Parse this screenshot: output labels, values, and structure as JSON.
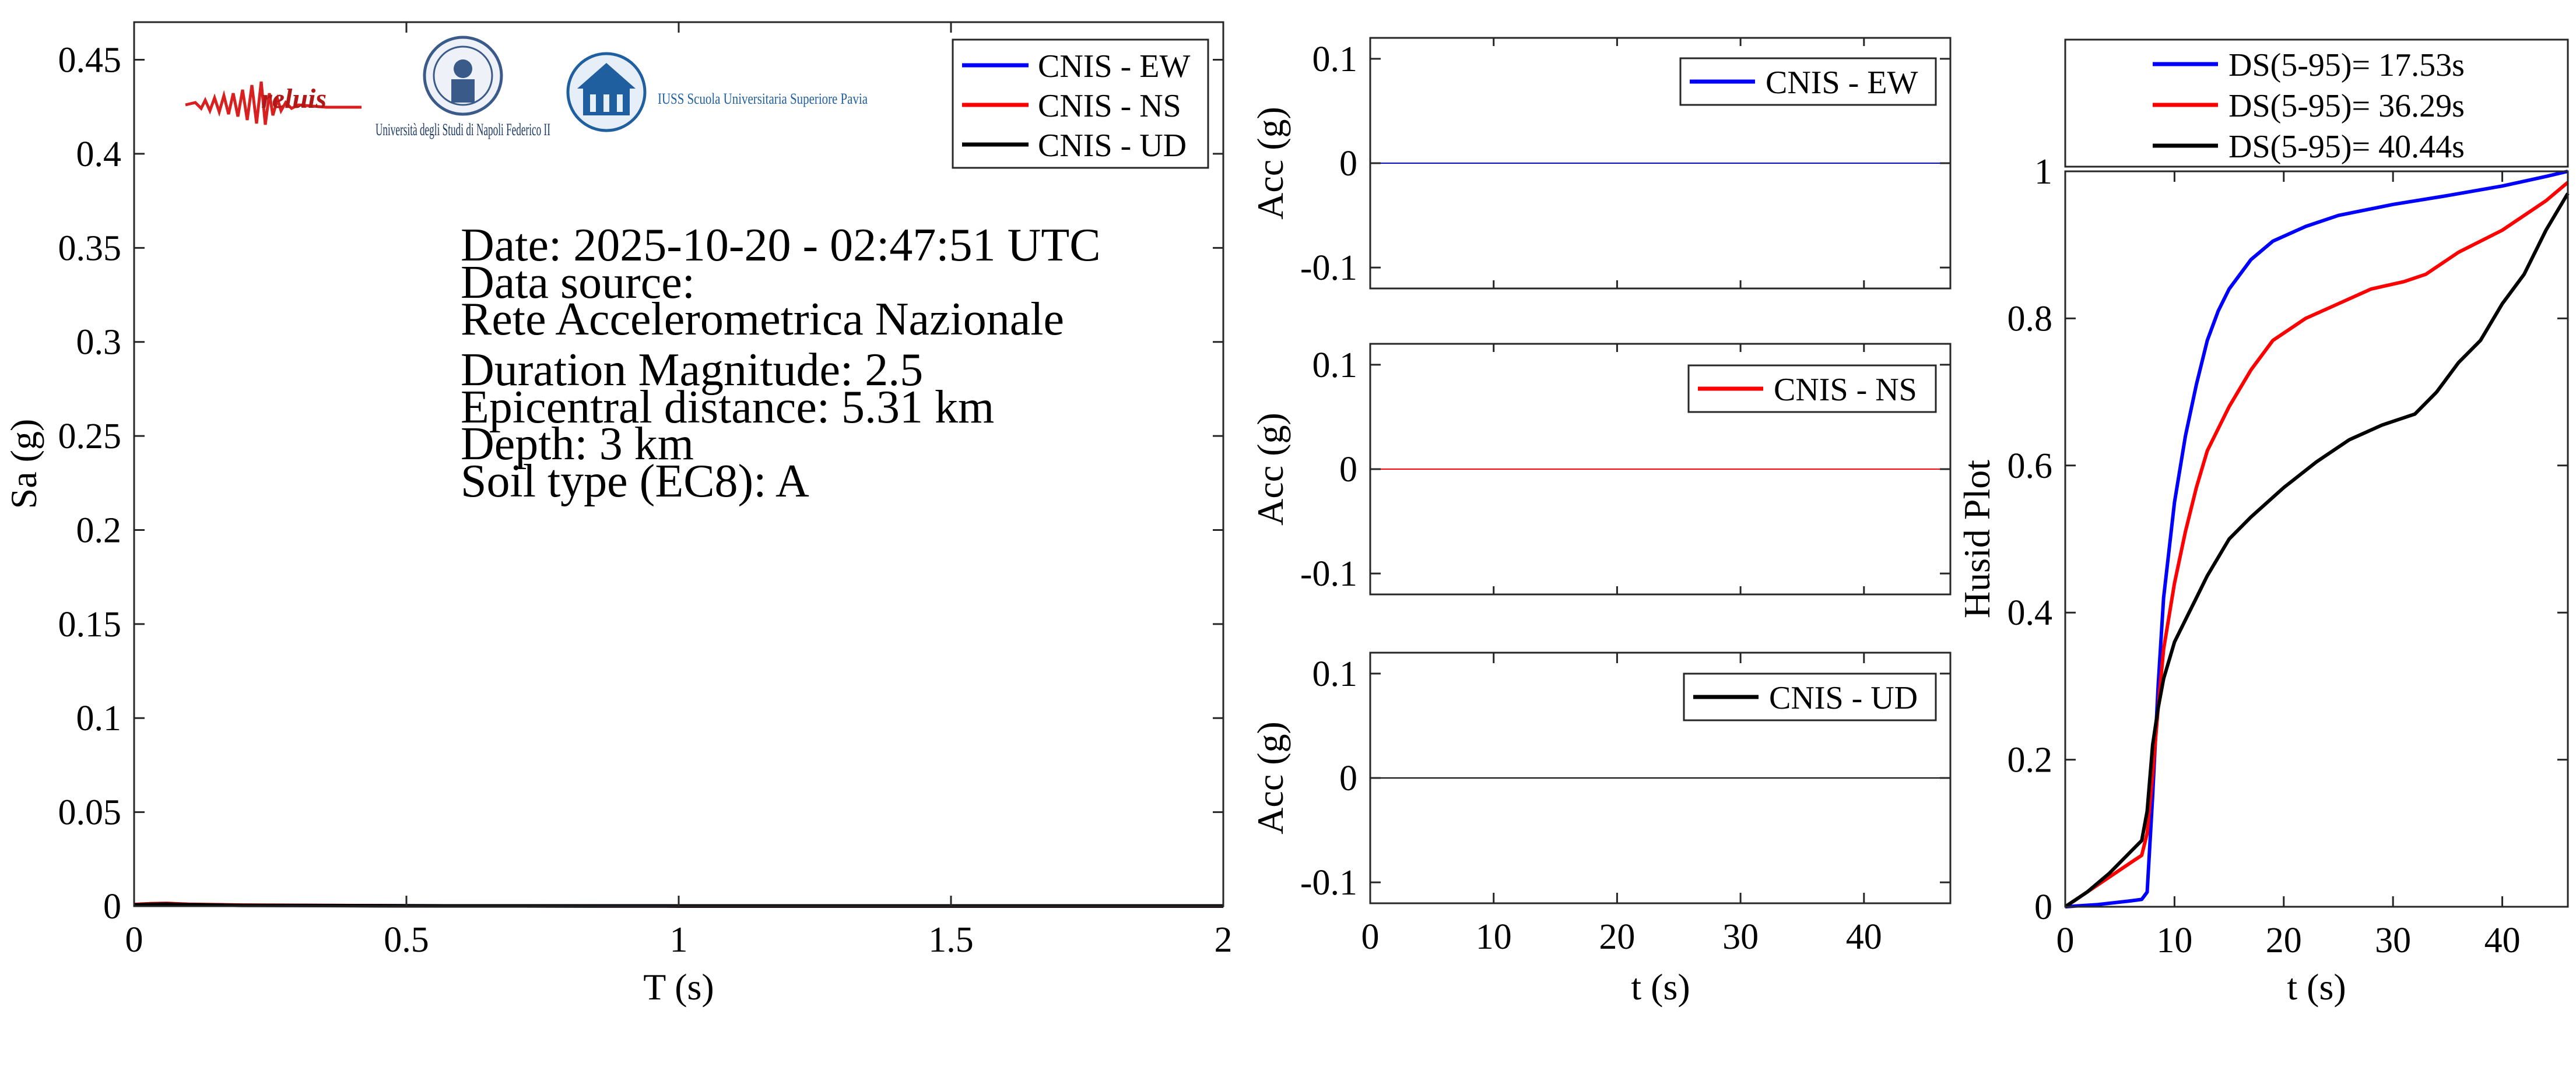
{
  "chart_data": [
    {
      "type": "line",
      "xlabel": "T (s)",
      "ylabel": "Sa (g)",
      "xlim": [
        0,
        2
      ],
      "ylim": [
        0,
        0.47
      ],
      "xticks": [
        "0",
        "0.5",
        "1",
        "1.5",
        "2"
      ],
      "yticks": [
        "0",
        "0.05",
        "0.1",
        "0.15",
        "0.2",
        "0.25",
        "0.3",
        "0.35",
        "0.4",
        "0.45"
      ],
      "legend_position": "top-right",
      "series": [
        {
          "name": "CNIS - EW",
          "color": "#0000ff",
          "x": [
            0,
            0.03,
            0.06,
            0.1,
            0.2,
            0.5,
            1,
            1.5,
            2
          ],
          "values": [
            0.0008,
            0.0011,
            0.0013,
            0.0009,
            0.0005,
            0.0002,
            0.0001,
            0.0001,
            0.0001
          ]
        },
        {
          "name": "CNIS - NS",
          "color": "#ff0000",
          "x": [
            0,
            0.03,
            0.06,
            0.1,
            0.2,
            0.5,
            1,
            1.5,
            2
          ],
          "values": [
            0.0009,
            0.0013,
            0.0015,
            0.001,
            0.0006,
            0.0002,
            0.0001,
            0.0001,
            0.0001
          ]
        },
        {
          "name": "CNIS - UD",
          "color": "#000000",
          "x": [
            0,
            0.03,
            0.06,
            0.1,
            0.2,
            0.5,
            1,
            1.5,
            2
          ],
          "values": [
            0.0007,
            0.001,
            0.0011,
            0.0008,
            0.0004,
            0.0002,
            0.0001,
            0.0001,
            0.0001
          ]
        }
      ],
      "annotations": [
        "Date: 2025-10-20 - 02:47:51 UTC",
        "Data source:",
        "Rete Accelerometrica Nazionale",
        "Duration Magnitude: 2.5",
        "Epicentral distance: 5.31 km",
        "Depth: 3 km",
        "Soil type (EC8): A"
      ],
      "logos": [
        "reluis",
        "Università degli Studi di Napoli Federico II",
        "IUSS Scuola Universitaria Superiore Pavia"
      ]
    },
    {
      "type": "line",
      "xlabel": "",
      "ylabel": "Acc (g)",
      "xlim": [
        0,
        47
      ],
      "ylim": [
        -0.12,
        0.12
      ],
      "yticks": [
        "-0.1",
        "0",
        "0.1"
      ],
      "legend_position": "top-right",
      "series": [
        {
          "name": "CNIS - EW",
          "color": "#0000ff",
          "x": [
            0,
            47
          ],
          "values": [
            0,
            0
          ]
        }
      ]
    },
    {
      "type": "line",
      "xlabel": "",
      "ylabel": "Acc (g)",
      "xlim": [
        0,
        47
      ],
      "ylim": [
        -0.12,
        0.12
      ],
      "yticks": [
        "-0.1",
        "0",
        "0.1"
      ],
      "legend_position": "top-right",
      "series": [
        {
          "name": "CNIS - NS",
          "color": "#ff0000",
          "x": [
            0,
            47
          ],
          "values": [
            0,
            0
          ]
        }
      ]
    },
    {
      "type": "line",
      "xlabel": "t (s)",
      "ylabel": "Acc (g)",
      "xlim": [
        0,
        47
      ],
      "ylim": [
        -0.12,
        0.12
      ],
      "xticks": [
        "0",
        "10",
        "20",
        "30",
        "40"
      ],
      "yticks": [
        "-0.1",
        "0",
        "0.1"
      ],
      "legend_position": "top-right",
      "series": [
        {
          "name": "CNIS - UD",
          "color": "#000000",
          "x": [
            0,
            47
          ],
          "values": [
            0,
            0
          ]
        }
      ]
    },
    {
      "type": "line",
      "xlabel": "t (s)",
      "ylabel": "Husid Plot",
      "xlim": [
        0,
        46
      ],
      "ylim": [
        0,
        1
      ],
      "xticks": [
        "0",
        "10",
        "20",
        "30",
        "40"
      ],
      "yticks": [
        "0",
        "0.2",
        "0.4",
        "0.6",
        "0.8",
        "1"
      ],
      "legend_position": "above",
      "series": [
        {
          "name": "DS(5-95)= 17.53s",
          "color": "#0000ff",
          "x": [
            0,
            3,
            6,
            7,
            7.5,
            8,
            8.5,
            9,
            10,
            11,
            12,
            13,
            14,
            15,
            17,
            19,
            22,
            25,
            30,
            35,
            40,
            44,
            46
          ],
          "values": [
            0,
            0.003,
            0.008,
            0.01,
            0.02,
            0.15,
            0.3,
            0.42,
            0.55,
            0.64,
            0.71,
            0.77,
            0.81,
            0.84,
            0.88,
            0.905,
            0.925,
            0.94,
            0.955,
            0.967,
            0.98,
            0.993,
            1.0
          ]
        },
        {
          "name": "DS(5-95)= 36.29s",
          "color": "#ff0000",
          "x": [
            0,
            2,
            4,
            6,
            7,
            7.5,
            8,
            8.5,
            9,
            10,
            11,
            12,
            13,
            15,
            17,
            19,
            22,
            25,
            28,
            31,
            33,
            36,
            40,
            44,
            46
          ],
          "values": [
            0,
            0.02,
            0.04,
            0.06,
            0.07,
            0.1,
            0.18,
            0.27,
            0.35,
            0.44,
            0.51,
            0.57,
            0.62,
            0.68,
            0.73,
            0.77,
            0.8,
            0.82,
            0.84,
            0.85,
            0.86,
            0.89,
            0.92,
            0.96,
            0.985
          ]
        },
        {
          "name": "DS(5-95)= 40.44s",
          "color": "#000000",
          "x": [
            0,
            2,
            4,
            6,
            7,
            7.5,
            8,
            8.5,
            9,
            10,
            11,
            12,
            13,
            15,
            17,
            20,
            23,
            26,
            29,
            31,
            32,
            34,
            36,
            38,
            40,
            42,
            44,
            46
          ],
          "values": [
            0,
            0.02,
            0.045,
            0.075,
            0.09,
            0.13,
            0.22,
            0.27,
            0.31,
            0.36,
            0.39,
            0.42,
            0.45,
            0.5,
            0.53,
            0.57,
            0.605,
            0.635,
            0.655,
            0.665,
            0.67,
            0.7,
            0.74,
            0.77,
            0.82,
            0.86,
            0.92,
            0.97
          ]
        }
      ]
    }
  ]
}
